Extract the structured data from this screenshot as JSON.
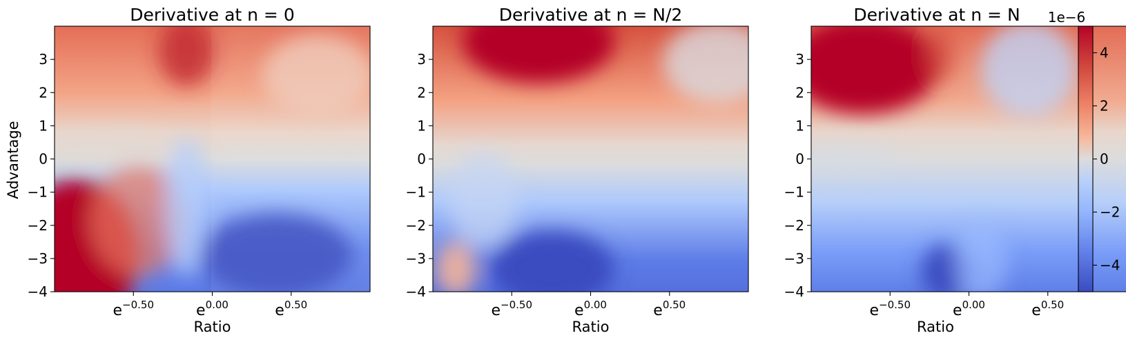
{
  "chart_data": [
    {
      "type": "heatmap",
      "title": "Derivative at n = 0",
      "xlabel": "Ratio",
      "ylabel": "Advantage",
      "x_tick_labels": [
        {
          "base": "e",
          "exp": "−0.50"
        },
        {
          "base": "e",
          "exp": "0.00"
        },
        {
          "base": "e",
          "exp": "0.50"
        }
      ],
      "x_tick_values": [
        -0.5,
        0.0,
        0.5
      ],
      "xlim": [
        -1.0,
        1.0
      ],
      "y_tick_labels": [
        "3",
        "2",
        "1",
        "0",
        "−1",
        "−2",
        "−3",
        "−4"
      ],
      "y_tick_values": [
        3,
        2,
        1,
        0,
        -1,
        -2,
        -3,
        -4
      ],
      "ylim": [
        -4,
        4
      ]
    },
    {
      "type": "heatmap",
      "title": "Derivative at n = N/2",
      "xlabel": "Ratio",
      "ylabel": "",
      "x_tick_labels": [
        {
          "base": "e",
          "exp": "−0.50"
        },
        {
          "base": "e",
          "exp": "0.00"
        },
        {
          "base": "e",
          "exp": "0.50"
        }
      ],
      "x_tick_values": [
        -0.5,
        0.0,
        0.5
      ],
      "xlim": [
        -1.0,
        1.0
      ],
      "y_tick_labels": [
        "3",
        "2",
        "1",
        "0",
        "−1",
        "−2",
        "−3",
        "−4"
      ],
      "y_tick_values": [
        3,
        2,
        1,
        0,
        -1,
        -2,
        -3,
        -4
      ],
      "ylim": [
        -4,
        4
      ]
    },
    {
      "type": "heatmap",
      "title": "Derivative at n = N",
      "xlabel": "Ratio",
      "ylabel": "",
      "x_tick_labels": [
        {
          "base": "e",
          "exp": "−0.50"
        },
        {
          "base": "e",
          "exp": "0.00"
        },
        {
          "base": "e",
          "exp": "0.50"
        }
      ],
      "x_tick_values": [
        -0.5,
        0.0,
        0.5
      ],
      "xlim": [
        -1.0,
        1.0
      ],
      "y_tick_labels": [
        "3",
        "2",
        "1",
        "0",
        "−1",
        "−2",
        "−3",
        "−4"
      ],
      "y_tick_values": [
        3,
        2,
        1,
        0,
        -1,
        -2,
        -3,
        -4
      ],
      "ylim": [
        -4,
        4
      ]
    }
  ],
  "colorbar": {
    "colormap": "coolwarm",
    "scale_label": "1e−6",
    "range": [
      -5,
      5
    ],
    "tick_values": [
      4,
      2,
      0,
      -2,
      -4
    ],
    "tick_labels": [
      "4",
      "2",
      "0",
      "−2",
      "−4"
    ],
    "colors": {
      "low": "#3b4cc0",
      "mid": "#dddddd",
      "high": "#b40426"
    }
  }
}
